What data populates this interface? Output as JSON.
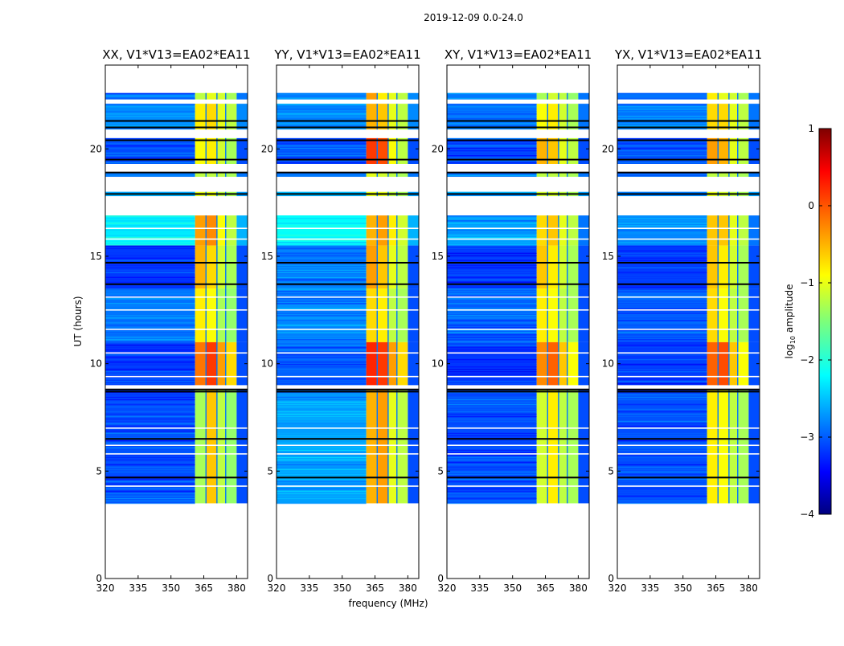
{
  "chart_data": {
    "type": "heatmap",
    "title": "2019-12-09 0.0-24.0",
    "xlabel": "frequency (MHz)",
    "ylabel": "UT (hours)",
    "xlim": [
      320,
      385
    ],
    "ylim": [
      0,
      23.9
    ],
    "xticks": [
      320,
      335,
      350,
      365,
      380
    ],
    "yticks": [
      0,
      5,
      10,
      15,
      20
    ],
    "freq_bands": [
      [
        320,
        361
      ],
      [
        361,
        366
      ],
      [
        366,
        371
      ],
      [
        371,
        375
      ],
      [
        375,
        380
      ],
      [
        380,
        385
      ]
    ],
    "colorbar": {
      "label": "log10 amplitude",
      "label_main": "log",
      "label_sub": "10",
      "label_rest": " amplitude",
      "range": [
        -4,
        1
      ],
      "ticks": [
        1,
        0,
        -1,
        -2,
        -3,
        -4
      ],
      "colormap": "jet"
    },
    "flagged_rows_ut": [
      8.8,
      8.7,
      13.7,
      14.7,
      19.5,
      20.4,
      21.0,
      21.3,
      4.7,
      6.5,
      18.9,
      17.9
    ],
    "gap_rows_ut": [
      4.3,
      5.8,
      6.2,
      7.0,
      9.4,
      10.5,
      11.6,
      12.5,
      13.1,
      15.8,
      16.3
    ],
    "panels": [
      {
        "title": "XX, V1*V13=EA02*EA11",
        "segments": [
          {
            "t": [
              22.3,
              22.6
            ],
            "v": [
              -2.8,
              -1.2,
              -1.0,
              -1.1,
              -1.3,
              -2.8
            ]
          },
          {
            "t": [
              20.9,
              22.1
            ],
            "v": [
              -2.7,
              -0.8,
              -0.7,
              -1.0,
              -1.2,
              -2.7
            ]
          },
          {
            "t": [
              19.3,
              20.5
            ],
            "v": [
              -3.0,
              -0.9,
              -0.8,
              -1.1,
              -1.3,
              -3.0
            ]
          },
          {
            "t": [
              18.7,
              18.9
            ],
            "v": [
              -2.8,
              -1.2,
              -1.2,
              -1.2,
              -1.3,
              -2.8
            ]
          },
          {
            "t": [
              17.8,
              18.0
            ],
            "v": [
              -2.6,
              -1.0,
              -1.0,
              -1.2,
              -1.3,
              -2.6
            ]
          },
          {
            "t": [
              15.5,
              16.9
            ],
            "v": [
              -2.2,
              -0.4,
              -0.3,
              -0.9,
              -1.2,
              -2.5
            ]
          },
          {
            "t": [
              13.5,
              15.5
            ],
            "v": [
              -3.1,
              -0.5,
              -0.7,
              -1.1,
              -1.3,
              -3.0
            ]
          },
          {
            "t": [
              11.0,
              13.5
            ],
            "v": [
              -2.8,
              -0.8,
              -0.9,
              -1.3,
              -1.4,
              -3.0
            ]
          },
          {
            "t": [
              9.0,
              11.0
            ],
            "v": [
              -3.1,
              -0.2,
              0.1,
              -0.4,
              -0.7,
              -3.0
            ]
          },
          {
            "t": [
              3.5,
              8.8
            ],
            "v": [
              -3.0,
              -1.3,
              -0.6,
              -1.2,
              -1.4,
              -3.0
            ]
          }
        ]
      },
      {
        "title": "YY, V1*V13=EA02*EA11",
        "segments": [
          {
            "t": [
              22.3,
              22.6
            ],
            "v": [
              -2.7,
              -0.4,
              -0.8,
              -1.0,
              -1.2,
              -2.7
            ]
          },
          {
            "t": [
              20.9,
              22.1
            ],
            "v": [
              -2.7,
              -0.5,
              -0.6,
              -1.0,
              -1.2,
              -2.7
            ]
          },
          {
            "t": [
              19.3,
              20.5
            ],
            "v": [
              -3.0,
              0.1,
              0.0,
              -0.9,
              -1.2,
              -3.0
            ]
          },
          {
            "t": [
              18.7,
              18.9
            ],
            "v": [
              -2.8,
              -1.0,
              -1.1,
              -1.2,
              -1.3,
              -2.8
            ]
          },
          {
            "t": [
              17.8,
              18.0
            ],
            "v": [
              -2.6,
              -1.0,
              -1.0,
              -1.2,
              -1.3,
              -2.6
            ]
          },
          {
            "t": [
              15.5,
              16.9
            ],
            "v": [
              -2.1,
              -0.5,
              -0.4,
              -0.8,
              -1.1,
              -2.5
            ]
          },
          {
            "t": [
              13.5,
              15.5
            ],
            "v": [
              -2.8,
              -0.4,
              -0.6,
              -1.0,
              -1.2,
              -3.0
            ]
          },
          {
            "t": [
              11.0,
              13.5
            ],
            "v": [
              -2.7,
              -0.7,
              -0.8,
              -1.2,
              -1.3,
              -3.0
            ]
          },
          {
            "t": [
              9.0,
              11.0
            ],
            "v": [
              -2.9,
              0.2,
              0.1,
              -0.4,
              -0.7,
              -3.0
            ]
          },
          {
            "t": [
              3.5,
              8.8
            ],
            "v": [
              -2.6,
              -0.5,
              -0.4,
              -1.0,
              -1.2,
              -3.0
            ]
          }
        ]
      },
      {
        "title": "XY, V1*V13=EA02*EA11",
        "segments": [
          {
            "t": [
              22.3,
              22.6
            ],
            "v": [
              -2.8,
              -1.3,
              -1.1,
              -1.2,
              -1.4,
              -2.8
            ]
          },
          {
            "t": [
              20.9,
              22.1
            ],
            "v": [
              -2.8,
              -0.9,
              -0.8,
              -1.1,
              -1.3,
              -2.8
            ]
          },
          {
            "t": [
              19.3,
              20.5
            ],
            "v": [
              -3.0,
              -0.5,
              -0.6,
              -1.0,
              -1.2,
              -3.0
            ]
          },
          {
            "t": [
              18.7,
              18.9
            ],
            "v": [
              -2.8,
              -1.2,
              -1.2,
              -1.2,
              -1.3,
              -2.8
            ]
          },
          {
            "t": [
              17.8,
              18.0
            ],
            "v": [
              -2.6,
              -1.1,
              -1.1,
              -1.2,
              -1.3,
              -2.6
            ]
          },
          {
            "t": [
              15.5,
              16.9
            ],
            "v": [
              -2.6,
              -0.7,
              -0.6,
              -1.0,
              -1.2,
              -2.8
            ]
          },
          {
            "t": [
              13.5,
              15.5
            ],
            "v": [
              -3.1,
              -0.6,
              -0.8,
              -1.1,
              -1.3,
              -3.0
            ]
          },
          {
            "t": [
              11.0,
              13.5
            ],
            "v": [
              -2.9,
              -0.8,
              -0.9,
              -1.2,
              -1.3,
              -3.0
            ]
          },
          {
            "t": [
              9.0,
              11.0
            ],
            "v": [
              -3.1,
              -0.3,
              -0.1,
              -0.6,
              -0.9,
              -3.0
            ]
          },
          {
            "t": [
              3.5,
              8.8
            ],
            "v": [
              -3.0,
              -1.1,
              -0.8,
              -1.2,
              -1.3,
              -3.0
            ]
          }
        ]
      },
      {
        "title": "YX, V1*V13=EA02*EA11",
        "segments": [
          {
            "t": [
              22.3,
              22.6
            ],
            "v": [
              -2.8,
              -0.8,
              -1.0,
              -1.1,
              -1.3,
              -2.8
            ]
          },
          {
            "t": [
              20.9,
              22.1
            ],
            "v": [
              -2.8,
              -0.7,
              -0.7,
              -1.0,
              -1.2,
              -2.8
            ]
          },
          {
            "t": [
              19.3,
              20.5
            ],
            "v": [
              -3.0,
              -0.4,
              -0.5,
              -1.0,
              -1.2,
              -3.0
            ]
          },
          {
            "t": [
              18.7,
              18.9
            ],
            "v": [
              -2.8,
              -1.2,
              -1.2,
              -1.2,
              -1.3,
              -2.8
            ]
          },
          {
            "t": [
              17.8,
              18.0
            ],
            "v": [
              -2.6,
              -1.0,
              -1.1,
              -1.2,
              -1.3,
              -2.6
            ]
          },
          {
            "t": [
              15.5,
              16.9
            ],
            "v": [
              -2.7,
              -0.6,
              -0.6,
              -1.0,
              -1.2,
              -2.8
            ]
          },
          {
            "t": [
              13.5,
              15.5
            ],
            "v": [
              -3.1,
              -0.6,
              -0.8,
              -1.1,
              -1.3,
              -3.0
            ]
          },
          {
            "t": [
              11.0,
              13.5
            ],
            "v": [
              -2.9,
              -0.7,
              -0.9,
              -1.2,
              -1.3,
              -3.0
            ]
          },
          {
            "t": [
              9.0,
              11.0
            ],
            "v": [
              -3.1,
              -0.1,
              0.0,
              -0.6,
              -0.9,
              -3.0
            ]
          },
          {
            "t": [
              3.5,
              8.8
            ],
            "v": [
              -3.0,
              -0.8,
              -0.9,
              -1.2,
              -1.3,
              -3.0
            ]
          }
        ]
      }
    ]
  }
}
